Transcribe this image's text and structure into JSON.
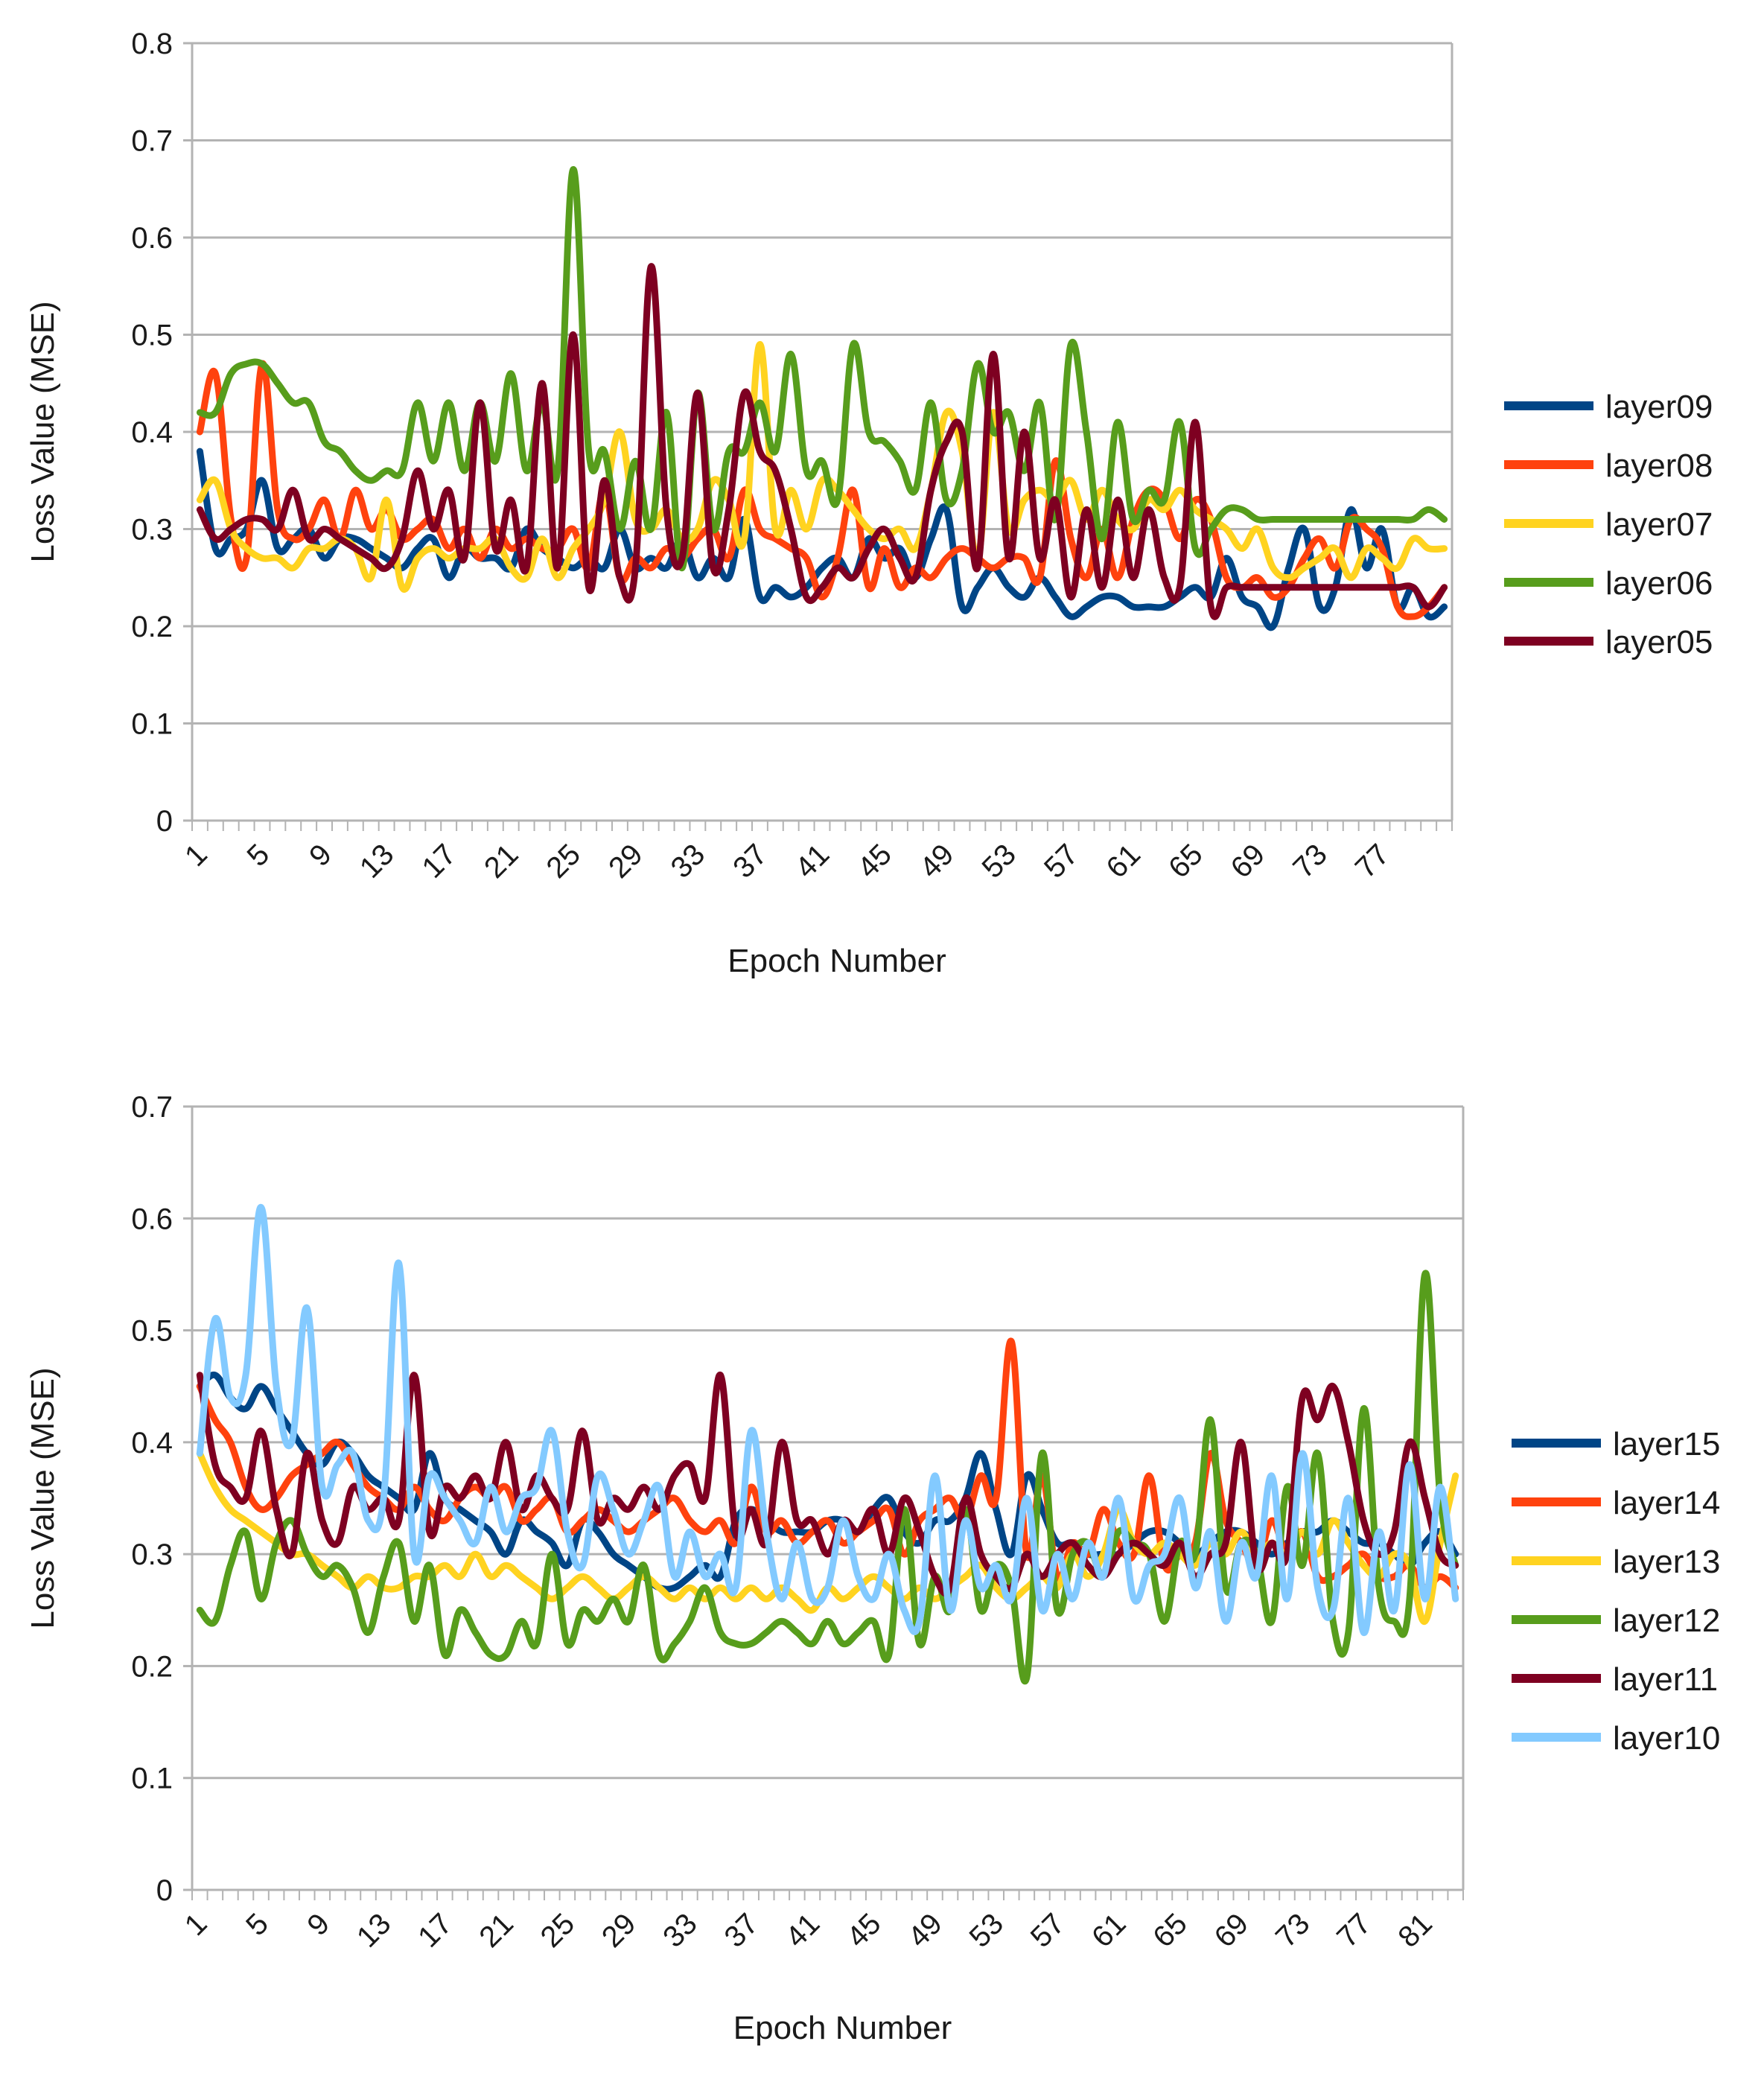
{
  "chart_data": [
    {
      "type": "line",
      "title": "",
      "xlabel": "Epoch Number",
      "ylabel": "Loss Value (MSE)",
      "ylim": [
        0,
        0.8
      ],
      "yticks": [
        "0",
        "0.1",
        "0.2",
        "0.3",
        "0.4",
        "0.5",
        "0.6",
        "0.7",
        "0.8"
      ],
      "xtick_labels": [
        "1",
        "5",
        "9",
        "13",
        "17",
        "21",
        "25",
        "29",
        "33",
        "37",
        "41",
        "45",
        "49",
        "53",
        "57",
        "61",
        "65",
        "69",
        "73",
        "77"
      ],
      "x_count": 81,
      "legend_position": "right",
      "grid": true,
      "series": [
        {
          "name": "layer09",
          "color": "#004586",
          "values": [
            0.38,
            0.28,
            0.29,
            0.3,
            0.35,
            0.28,
            0.29,
            0.3,
            0.27,
            0.29,
            0.29,
            0.28,
            0.27,
            0.26,
            0.28,
            0.29,
            0.25,
            0.28,
            0.27,
            0.27,
            0.26,
            0.3,
            0.28,
            0.27,
            0.26,
            0.27,
            0.26,
            0.3,
            0.26,
            0.27,
            0.26,
            0.29,
            0.25,
            0.27,
            0.25,
            0.31,
            0.23,
            0.24,
            0.23,
            0.24,
            0.26,
            0.27,
            0.25,
            0.29,
            0.27,
            0.28,
            0.25,
            0.29,
            0.32,
            0.22,
            0.24,
            0.26,
            0.24,
            0.23,
            0.25,
            0.23,
            0.21,
            0.22,
            0.23,
            0.23,
            0.22,
            0.22,
            0.22,
            0.23,
            0.24,
            0.23,
            0.27,
            0.23,
            0.22,
            0.2,
            0.26,
            0.3,
            0.22,
            0.24,
            0.32,
            0.26,
            0.3,
            0.22,
            0.24,
            0.21,
            0.22
          ]
        },
        {
          "name": "layer08",
          "color": "#ff420e",
          "values": [
            0.4,
            0.46,
            0.31,
            0.27,
            0.47,
            0.32,
            0.29,
            0.3,
            0.33,
            0.29,
            0.34,
            0.3,
            0.32,
            0.29,
            0.3,
            0.31,
            0.28,
            0.3,
            0.27,
            0.3,
            0.28,
            0.29,
            0.28,
            0.28,
            0.3,
            0.26,
            0.34,
            0.25,
            0.27,
            0.26,
            0.28,
            0.27,
            0.29,
            0.3,
            0.27,
            0.34,
            0.3,
            0.29,
            0.28,
            0.27,
            0.23,
            0.27,
            0.34,
            0.24,
            0.28,
            0.24,
            0.26,
            0.25,
            0.27,
            0.28,
            0.27,
            0.26,
            0.27,
            0.27,
            0.25,
            0.37,
            0.29,
            0.25,
            0.3,
            0.25,
            0.31,
            0.34,
            0.33,
            0.29,
            0.33,
            0.31,
            0.25,
            0.24,
            0.25,
            0.23,
            0.24,
            0.27,
            0.29,
            0.26,
            0.31,
            0.3,
            0.28,
            0.22,
            0.21,
            0.22,
            0.24
          ]
        },
        {
          "name": "layer07",
          "color": "#ffd320",
          "values": [
            0.33,
            0.35,
            0.3,
            0.28,
            0.27,
            0.27,
            0.26,
            0.28,
            0.28,
            0.29,
            0.28,
            0.25,
            0.33,
            0.24,
            0.27,
            0.28,
            0.27,
            0.28,
            0.28,
            0.29,
            0.26,
            0.25,
            0.29,
            0.25,
            0.28,
            0.3,
            0.33,
            0.4,
            0.31,
            0.3,
            0.32,
            0.29,
            0.3,
            0.35,
            0.33,
            0.29,
            0.49,
            0.3,
            0.34,
            0.3,
            0.35,
            0.34,
            0.32,
            0.3,
            0.29,
            0.3,
            0.28,
            0.34,
            0.42,
            0.38,
            0.27,
            0.42,
            0.3,
            0.33,
            0.34,
            0.33,
            0.35,
            0.31,
            0.34,
            0.31,
            0.3,
            0.33,
            0.32,
            0.34,
            0.32,
            0.31,
            0.3,
            0.28,
            0.3,
            0.26,
            0.25,
            0.26,
            0.27,
            0.28,
            0.25,
            0.28,
            0.27,
            0.26,
            0.29,
            0.28,
            0.28
          ]
        },
        {
          "name": "layer06",
          "color": "#579d1c",
          "values": [
            0.42,
            0.42,
            0.46,
            0.47,
            0.47,
            0.45,
            0.43,
            0.43,
            0.39,
            0.38,
            0.36,
            0.35,
            0.36,
            0.36,
            0.43,
            0.37,
            0.43,
            0.36,
            0.43,
            0.37,
            0.46,
            0.36,
            0.43,
            0.36,
            0.67,
            0.38,
            0.38,
            0.3,
            0.37,
            0.3,
            0.42,
            0.26,
            0.44,
            0.3,
            0.38,
            0.38,
            0.43,
            0.38,
            0.48,
            0.36,
            0.37,
            0.33,
            0.49,
            0.4,
            0.39,
            0.37,
            0.34,
            0.43,
            0.33,
            0.36,
            0.47,
            0.4,
            0.42,
            0.36,
            0.43,
            0.31,
            0.49,
            0.4,
            0.29,
            0.41,
            0.31,
            0.34,
            0.33,
            0.41,
            0.28,
            0.3,
            0.32,
            0.32,
            0.31,
            0.31,
            0.31,
            0.31,
            0.31,
            0.31,
            0.31,
            0.31,
            0.31,
            0.31,
            0.31,
            0.32,
            0.31
          ]
        },
        {
          "name": "layer05",
          "color": "#7e0021",
          "values": [
            0.32,
            0.29,
            0.3,
            0.31,
            0.31,
            0.3,
            0.34,
            0.29,
            0.3,
            0.29,
            0.28,
            0.27,
            0.26,
            0.29,
            0.36,
            0.3,
            0.34,
            0.27,
            0.43,
            0.28,
            0.33,
            0.26,
            0.45,
            0.26,
            0.5,
            0.24,
            0.35,
            0.25,
            0.26,
            0.57,
            0.32,
            0.27,
            0.44,
            0.26,
            0.32,
            0.44,
            0.38,
            0.36,
            0.3,
            0.23,
            0.24,
            0.26,
            0.25,
            0.28,
            0.3,
            0.27,
            0.25,
            0.34,
            0.39,
            0.4,
            0.26,
            0.48,
            0.27,
            0.4,
            0.27,
            0.33,
            0.23,
            0.32,
            0.24,
            0.33,
            0.25,
            0.32,
            0.25,
            0.24,
            0.41,
            0.22,
            0.24,
            0.24,
            0.24,
            0.24,
            0.24,
            0.24,
            0.24,
            0.24,
            0.24,
            0.24,
            0.24,
            0.24,
            0.24,
            0.22,
            0.24
          ]
        }
      ]
    },
    {
      "type": "line",
      "title": "",
      "xlabel": "Epoch Number",
      "ylabel": "Loss Value (MSE)",
      "ylim": [
        0,
        0.7
      ],
      "yticks": [
        "0",
        "0.1",
        "0.2",
        "0.3",
        "0.4",
        "0.5",
        "0.6",
        "0.7"
      ],
      "xtick_labels": [
        "1",
        "5",
        "9",
        "13",
        "17",
        "21",
        "25",
        "29",
        "33",
        "37",
        "41",
        "45",
        "49",
        "53",
        "57",
        "61",
        "65",
        "69",
        "73",
        "77",
        "81"
      ],
      "x_count": 83,
      "legend_position": "right",
      "grid": true,
      "series": [
        {
          "name": "layer15",
          "color": "#004586",
          "values": [
            0.45,
            0.46,
            0.44,
            0.43,
            0.45,
            0.43,
            0.41,
            0.39,
            0.38,
            0.4,
            0.39,
            0.37,
            0.36,
            0.35,
            0.34,
            0.39,
            0.35,
            0.34,
            0.33,
            0.32,
            0.3,
            0.33,
            0.32,
            0.31,
            0.29,
            0.33,
            0.32,
            0.3,
            0.29,
            0.28,
            0.27,
            0.27,
            0.28,
            0.29,
            0.28,
            0.33,
            0.34,
            0.33,
            0.32,
            0.32,
            0.32,
            0.33,
            0.33,
            0.32,
            0.34,
            0.35,
            0.32,
            0.31,
            0.33,
            0.33,
            0.35,
            0.39,
            0.34,
            0.3,
            0.37,
            0.34,
            0.31,
            0.31,
            0.3,
            0.3,
            0.3,
            0.31,
            0.32,
            0.32,
            0.31,
            0.3,
            0.31,
            0.32,
            0.32,
            0.31,
            0.3,
            0.31,
            0.32,
            0.32,
            0.33,
            0.32,
            0.31,
            0.31,
            0.3,
            0.29,
            0.31,
            0.32,
            0.3
          ]
        },
        {
          "name": "layer14",
          "color": "#ff420e",
          "values": [
            0.45,
            0.42,
            0.4,
            0.36,
            0.34,
            0.35,
            0.37,
            0.38,
            0.39,
            0.4,
            0.38,
            0.36,
            0.35,
            0.34,
            0.36,
            0.34,
            0.33,
            0.35,
            0.36,
            0.35,
            0.36,
            0.33,
            0.34,
            0.35,
            0.32,
            0.33,
            0.34,
            0.33,
            0.32,
            0.33,
            0.34,
            0.35,
            0.33,
            0.32,
            0.33,
            0.31,
            0.36,
            0.32,
            0.33,
            0.31,
            0.32,
            0.33,
            0.31,
            0.32,
            0.33,
            0.34,
            0.3,
            0.33,
            0.34,
            0.35,
            0.33,
            0.37,
            0.35,
            0.49,
            0.3,
            0.37,
            0.28,
            0.31,
            0.3,
            0.34,
            0.31,
            0.3,
            0.37,
            0.29,
            0.3,
            0.31,
            0.39,
            0.33,
            0.31,
            0.29,
            0.33,
            0.3,
            0.32,
            0.28,
            0.28,
            0.29,
            0.3,
            0.28,
            0.28,
            0.29,
            0.27,
            0.28,
            0.27
          ]
        },
        {
          "name": "layer13",
          "color": "#ffd320",
          "values": [
            0.39,
            0.36,
            0.34,
            0.33,
            0.32,
            0.31,
            0.3,
            0.3,
            0.29,
            0.28,
            0.27,
            0.28,
            0.27,
            0.27,
            0.28,
            0.28,
            0.29,
            0.28,
            0.3,
            0.28,
            0.29,
            0.28,
            0.27,
            0.26,
            0.27,
            0.28,
            0.27,
            0.26,
            0.27,
            0.28,
            0.27,
            0.26,
            0.27,
            0.26,
            0.27,
            0.26,
            0.27,
            0.26,
            0.27,
            0.26,
            0.25,
            0.27,
            0.26,
            0.27,
            0.28,
            0.27,
            0.26,
            0.27,
            0.26,
            0.27,
            0.28,
            0.29,
            0.27,
            0.26,
            0.27,
            0.28,
            0.27,
            0.3,
            0.28,
            0.3,
            0.34,
            0.31,
            0.3,
            0.31,
            0.3,
            0.29,
            0.31,
            0.3,
            0.32,
            0.3,
            0.31,
            0.3,
            0.32,
            0.3,
            0.33,
            0.31,
            0.29,
            0.28,
            0.3,
            0.29,
            0.24,
            0.31,
            0.37
          ]
        },
        {
          "name": "layer12",
          "color": "#579d1c",
          "values": [
            0.25,
            0.24,
            0.29,
            0.32,
            0.26,
            0.31,
            0.33,
            0.3,
            0.28,
            0.29,
            0.27,
            0.23,
            0.28,
            0.31,
            0.24,
            0.29,
            0.21,
            0.25,
            0.23,
            0.21,
            0.21,
            0.24,
            0.22,
            0.3,
            0.22,
            0.25,
            0.24,
            0.26,
            0.24,
            0.29,
            0.21,
            0.22,
            0.24,
            0.27,
            0.23,
            0.22,
            0.22,
            0.23,
            0.24,
            0.23,
            0.22,
            0.24,
            0.22,
            0.23,
            0.24,
            0.21,
            0.34,
            0.22,
            0.28,
            0.25,
            0.34,
            0.25,
            0.29,
            0.27,
            0.19,
            0.39,
            0.25,
            0.3,
            0.31,
            0.28,
            0.32,
            0.31,
            0.3,
            0.24,
            0.31,
            0.3,
            0.42,
            0.27,
            0.31,
            0.3,
            0.24,
            0.36,
            0.29,
            0.39,
            0.24,
            0.23,
            0.43,
            0.27,
            0.24,
            0.26,
            0.55,
            0.35,
            0.29
          ]
        },
        {
          "name": "layer11",
          "color": "#7e0021",
          "values": [
            0.46,
            0.38,
            0.36,
            0.35,
            0.41,
            0.34,
            0.3,
            0.39,
            0.33,
            0.31,
            0.36,
            0.34,
            0.35,
            0.33,
            0.46,
            0.32,
            0.36,
            0.35,
            0.37,
            0.35,
            0.4,
            0.34,
            0.37,
            0.35,
            0.34,
            0.41,
            0.33,
            0.35,
            0.34,
            0.36,
            0.34,
            0.37,
            0.38,
            0.35,
            0.46,
            0.32,
            0.34,
            0.31,
            0.4,
            0.33,
            0.33,
            0.3,
            0.33,
            0.32,
            0.34,
            0.3,
            0.35,
            0.32,
            0.28,
            0.27,
            0.35,
            0.3,
            0.28,
            0.27,
            0.3,
            0.28,
            0.3,
            0.31,
            0.29,
            0.28,
            0.3,
            0.31,
            0.3,
            0.29,
            0.31,
            0.28,
            0.3,
            0.31,
            0.4,
            0.29,
            0.31,
            0.3,
            0.44,
            0.42,
            0.45,
            0.4,
            0.33,
            0.3,
            0.32,
            0.4,
            0.35,
            0.3,
            0.29
          ]
        },
        {
          "name": "layer10",
          "color": "#83caff",
          "values": [
            0.39,
            0.51,
            0.44,
            0.46,
            0.61,
            0.45,
            0.4,
            0.52,
            0.36,
            0.38,
            0.39,
            0.33,
            0.35,
            0.56,
            0.3,
            0.37,
            0.35,
            0.33,
            0.31,
            0.36,
            0.32,
            0.35,
            0.36,
            0.41,
            0.32,
            0.29,
            0.37,
            0.34,
            0.3,
            0.33,
            0.36,
            0.28,
            0.32,
            0.28,
            0.3,
            0.27,
            0.41,
            0.32,
            0.26,
            0.31,
            0.26,
            0.27,
            0.33,
            0.28,
            0.26,
            0.3,
            0.25,
            0.24,
            0.37,
            0.25,
            0.33,
            0.27,
            0.29,
            0.26,
            0.35,
            0.25,
            0.3,
            0.26,
            0.31,
            0.28,
            0.35,
            0.26,
            0.29,
            0.3,
            0.35,
            0.27,
            0.32,
            0.24,
            0.31,
            0.28,
            0.37,
            0.26,
            0.39,
            0.27,
            0.25,
            0.35,
            0.23,
            0.32,
            0.25,
            0.38,
            0.26,
            0.36,
            0.26
          ]
        }
      ]
    }
  ]
}
